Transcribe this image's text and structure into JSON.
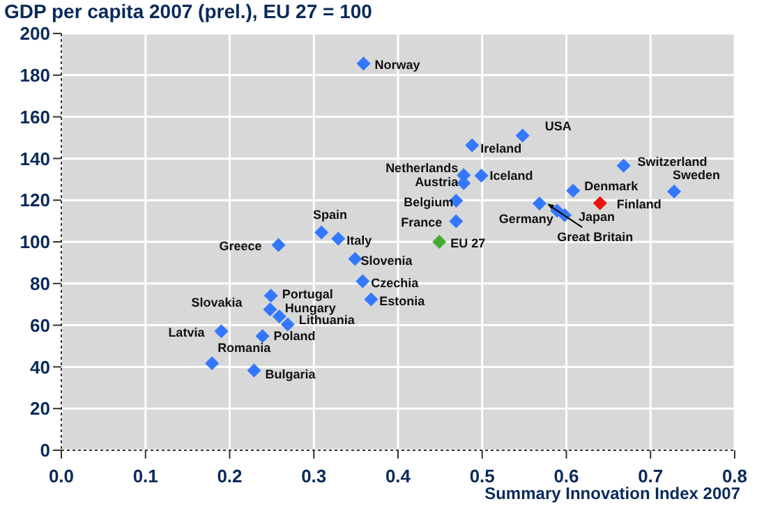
{
  "chart_data": {
    "type": "scatter",
    "title": "GDP per capita 2007 (prel.), EU 27 = 100",
    "xlabel": "Summary Innovation Index 2007",
    "x": [
      0.359,
      0.548,
      0.488,
      0.478,
      0.478,
      0.499,
      0.469,
      0.469,
      0.449,
      0.568,
      0.589,
      0.598,
      0.608,
      0.64,
      0.668,
      0.728,
      0.309,
      0.329,
      0.258,
      0.349,
      0.358,
      0.368,
      0.249,
      0.248,
      0.259,
      0.269,
      0.19,
      0.239,
      0.179,
      0.229
    ],
    "values": [
      185.5,
      151,
      146.3,
      132,
      128.2,
      131.8,
      119.7,
      109.9,
      100,
      118.4,
      115,
      112.8,
      124.6,
      118.6,
      136.5,
      124.2,
      104.5,
      101.5,
      98.5,
      91.8,
      81.1,
      72.4,
      74.2,
      67.6,
      64.2,
      60.4,
      57.1,
      54.8,
      41.7,
      38.3
    ],
    "colors": [
      "#3377ff",
      "#3377ff",
      "#3377ff",
      "#3377ff",
      "#3377ff",
      "#3377ff",
      "#3377ff",
      "#3377ff",
      "#44aa33",
      "#3377ff",
      "#3377ff",
      "#3377ff",
      "#3377ff",
      "#ee1111",
      "#3377ff",
      "#3377ff",
      "#3377ff",
      "#3377ff",
      "#3377ff",
      "#3377ff",
      "#3377ff",
      "#3377ff",
      "#3377ff",
      "#3377ff",
      "#3377ff",
      "#3377ff",
      "#3377ff",
      "#3377ff",
      "#3377ff",
      "#3377ff"
    ],
    "marker": "diamond",
    "grid": true,
    "legend": false,
    "xlim": [
      0,
      0.8
    ],
    "xticks": [
      {
        "value": 0,
        "label": "0.0"
      },
      {
        "value": 0.1,
        "label": "0.1"
      },
      {
        "value": 0.2,
        "label": "0.2"
      },
      {
        "value": 0.3,
        "label": "0.3"
      },
      {
        "value": 0.4,
        "label": "0.4"
      },
      {
        "value": 0.5,
        "label": "0.5"
      },
      {
        "value": 0.6,
        "label": "0.6"
      },
      {
        "value": 0.7,
        "label": "0.7"
      },
      {
        "value": 0.8,
        "label": "0.8"
      }
    ],
    "ylim": [
      0,
      200
    ],
    "yticks": [
      0,
      20,
      40,
      60,
      80,
      100,
      120,
      140,
      160,
      180,
      200
    ],
    "annotations": [
      {
        "text": "Norway",
        "x": 0.359,
        "y": 185.5
      },
      {
        "text": "USA",
        "x": 0.548,
        "y": 151
      },
      {
        "text": "Ireland",
        "x": 0.488,
        "y": 146.3
      },
      {
        "text": "Netherlands",
        "x": 0.478,
        "y": 132
      },
      {
        "text": "Austria",
        "x": 0.478,
        "y": 128.2
      },
      {
        "text": "Iceland",
        "x": 0.499,
        "y": 131.8
      },
      {
        "text": "Belgium",
        "x": 0.469,
        "y": 119.7
      },
      {
        "text": "France",
        "x": 0.469,
        "y": 109.9
      },
      {
        "text": "EU 27",
        "x": 0.449,
        "y": 100
      },
      {
        "text": "Germany",
        "x": 0.568,
        "y": 118.4
      },
      {
        "text": "Great Britain",
        "x": 0.589,
        "y": 115
      },
      {
        "text": "Japan",
        "x": 0.598,
        "y": 112.8
      },
      {
        "text": "Denmark",
        "x": 0.608,
        "y": 124.6
      },
      {
        "text": "Finland",
        "x": 0.64,
        "y": 118.6
      },
      {
        "text": "Switzerland",
        "x": 0.668,
        "y": 136.5
      },
      {
        "text": "Sweden",
        "x": 0.728,
        "y": 124.2
      },
      {
        "text": "Spain",
        "x": 0.309,
        "y": 104.5
      },
      {
        "text": "Italy",
        "x": 0.329,
        "y": 101.5
      },
      {
        "text": "Greece",
        "x": 0.258,
        "y": 98.5
      },
      {
        "text": "Slovenia",
        "x": 0.349,
        "y": 91.8
      },
      {
        "text": "Czechia",
        "x": 0.358,
        "y": 81.1
      },
      {
        "text": "Estonia",
        "x": 0.368,
        "y": 72.4
      },
      {
        "text": "Portugal",
        "x": 0.249,
        "y": 74.2
      },
      {
        "text": "Slovakia",
        "x": 0.248,
        "y": 67.6
      },
      {
        "text": "Hungary",
        "x": 0.259,
        "y": 64.2
      },
      {
        "text": "Lithuania",
        "x": 0.269,
        "y": 60.4
      },
      {
        "text": "Latvia",
        "x": 0.19,
        "y": 57.1
      },
      {
        "text": "Poland",
        "x": 0.239,
        "y": 54.8
      },
      {
        "text": "Romania",
        "x": 0.179,
        "y": 41.7
      },
      {
        "text": "Bulgaria",
        "x": 0.229,
        "y": 38.3
      }
    ]
  }
}
